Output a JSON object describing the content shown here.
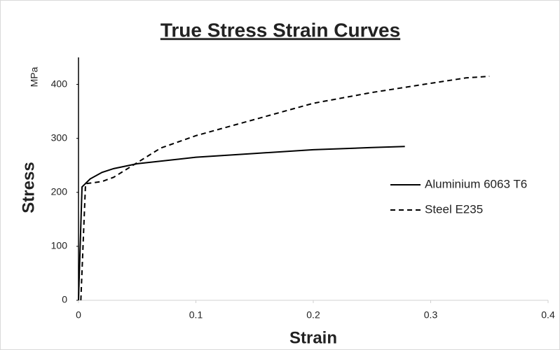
{
  "chart_data": {
    "type": "line",
    "title": "True Stress Strain Curves",
    "x_label": "Strain",
    "y_label": "Stress",
    "y_unit": "MPa",
    "xlim": [
      0,
      0.4
    ],
    "xticks": [
      0,
      0.1,
      0.2,
      0.3,
      0.4
    ],
    "ylim": [
      0,
      450
    ],
    "yticks": [
      0,
      100,
      200,
      300,
      400
    ],
    "grid": false,
    "legend": "right",
    "series": [
      {
        "name": "Aluminium 6063 T6",
        "color": "#000000",
        "dash": "solid",
        "x": [
          0,
          0.003,
          0.01,
          0.02,
          0.03,
          0.05,
          0.1,
          0.15,
          0.2,
          0.25,
          0.278
        ],
        "values": [
          0,
          210,
          225,
          237,
          244,
          253,
          265,
          272,
          279,
          283,
          285
        ]
      },
      {
        "name": "Steel E235",
        "color": "#000000",
        "dash": "dashed",
        "x": [
          0.002,
          0.006,
          0.02,
          0.03,
          0.05,
          0.07,
          0.1,
          0.15,
          0.2,
          0.25,
          0.3,
          0.33,
          0.35
        ],
        "values": [
          0,
          216,
          220,
          228,
          255,
          282,
          305,
          335,
          365,
          385,
          402,
          412,
          415
        ]
      }
    ]
  }
}
